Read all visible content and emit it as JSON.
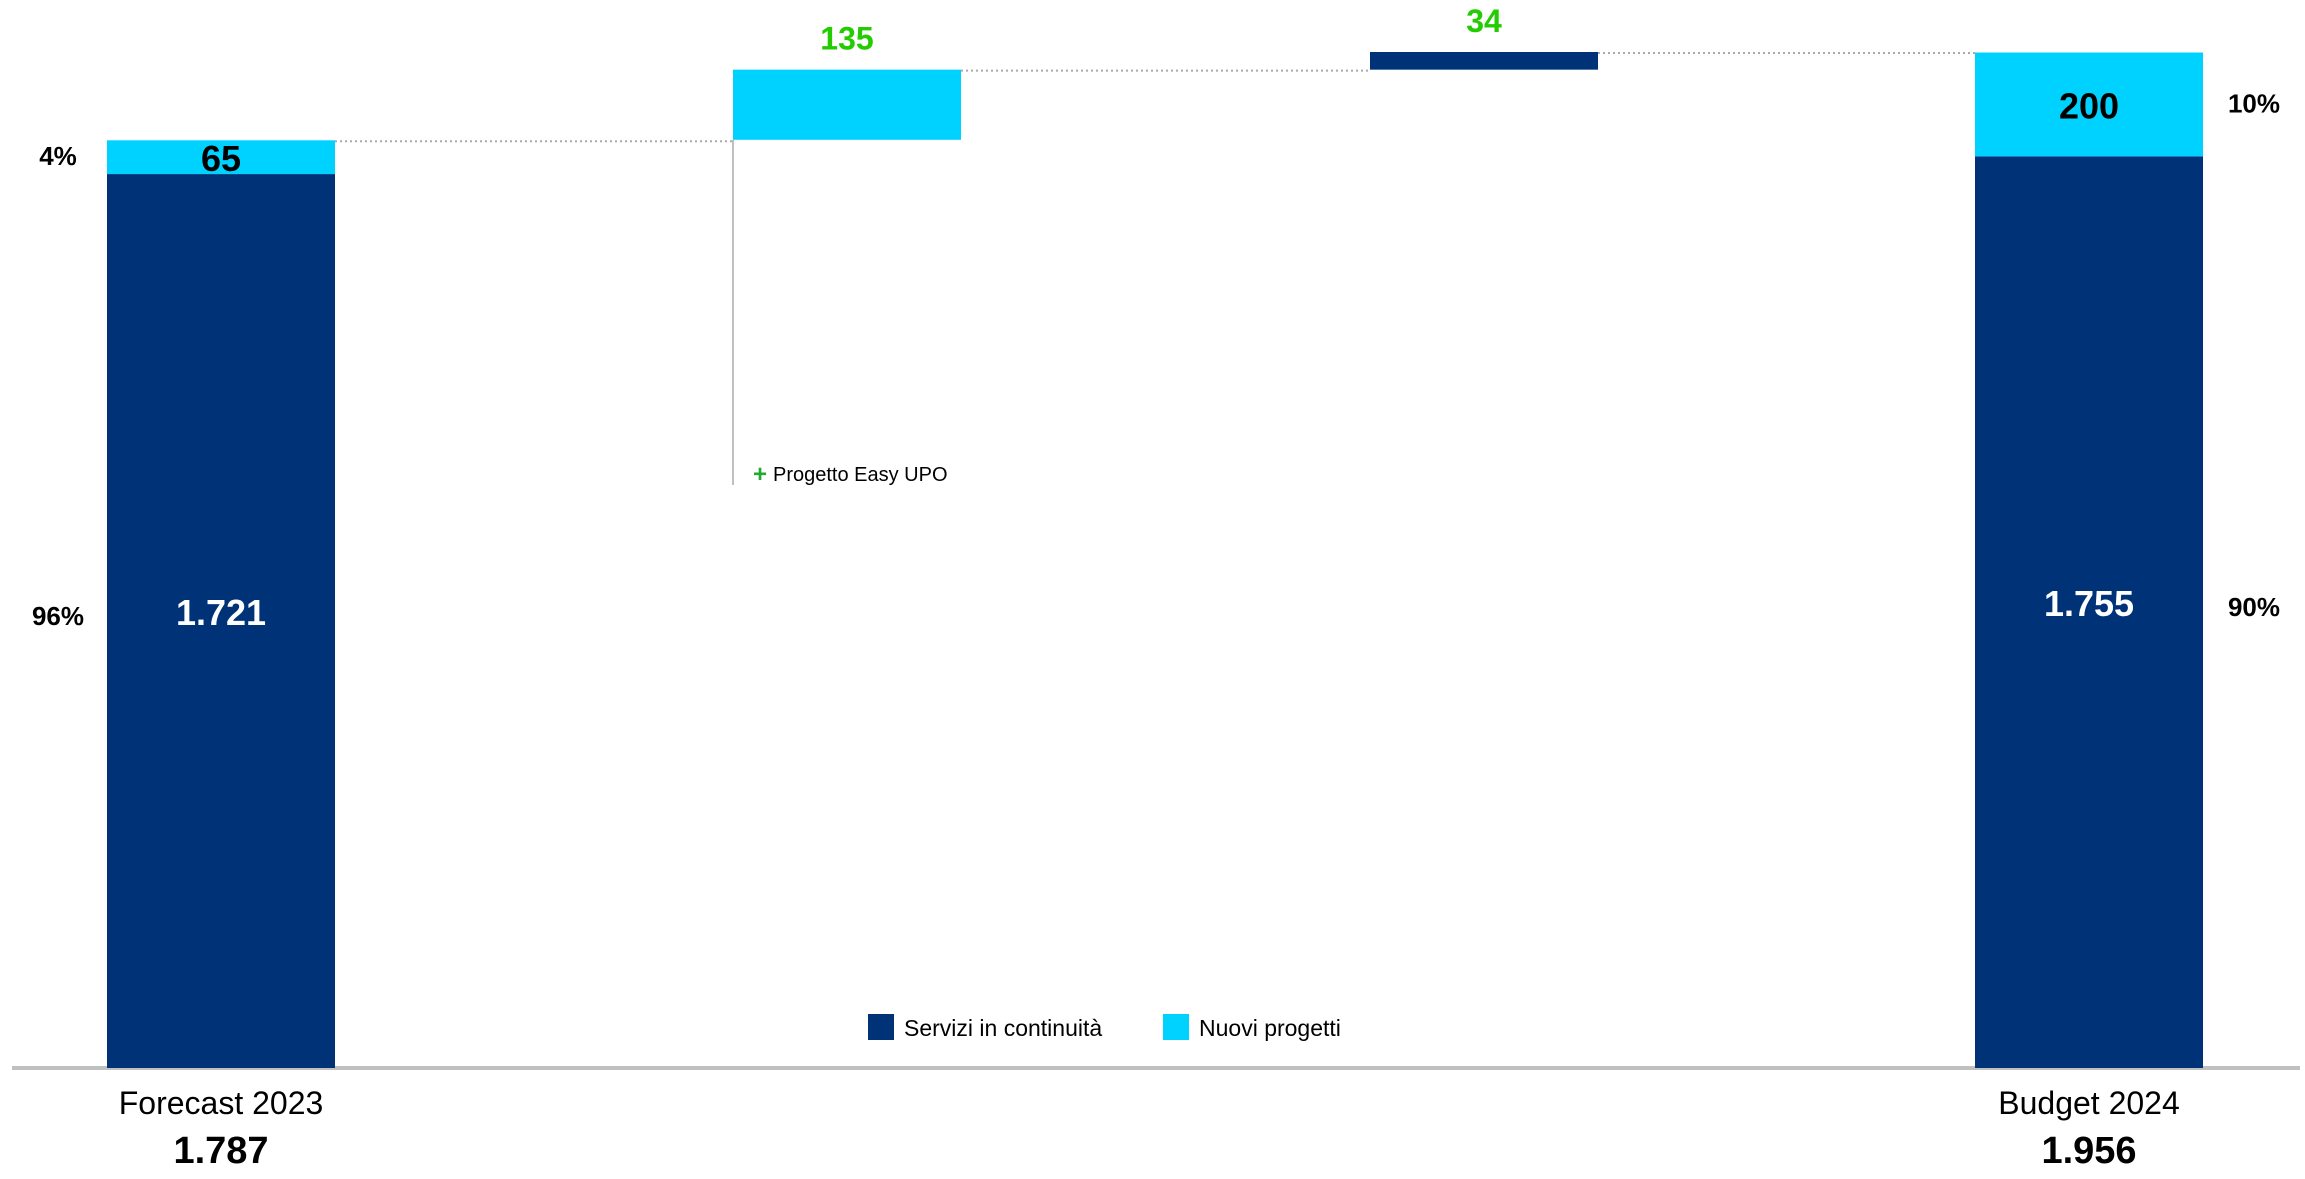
{
  "chart_data": {
    "type": "bar",
    "subtype": "stacked-waterfall",
    "ylim": [
      0,
      2000
    ],
    "series": [
      {
        "name": "Servizi in continuità",
        "color": "#003278"
      },
      {
        "name": "Nuovi progetti",
        "color": "#00D2FF"
      }
    ],
    "bars": [
      {
        "kind": "total",
        "category": "Forecast 2023",
        "total_label": "1.787",
        "segments": [
          {
            "series": "Servizi in continuità",
            "value": 1721,
            "label": "1.721"
          },
          {
            "series": "Nuovi progetti",
            "value": 65,
            "label": "65"
          }
        ],
        "left_percent_labels": [
          "96%",
          "4%"
        ]
      },
      {
        "kind": "delta",
        "category": "",
        "series": "Nuovi progetti",
        "from": 1787,
        "to": 1922,
        "label": "135",
        "annotation": {
          "sign": "+",
          "text": "Progetto Easy UPO"
        }
      },
      {
        "kind": "delta",
        "category": "",
        "series": "Servizi in continuità",
        "from": 1922,
        "to": 1956,
        "label": "34"
      },
      {
        "kind": "total",
        "category": "Budget 2024",
        "total_label": "1.956",
        "segments": [
          {
            "series": "Servizi in continuità",
            "value": 1755,
            "label": "1.755"
          },
          {
            "series": "Nuovi progetti",
            "value": 200,
            "label": "200"
          }
        ],
        "right_percent_labels": [
          "90%",
          "10%"
        ]
      }
    ],
    "legend": {
      "placement": "bottom-center",
      "items": [
        {
          "label": "Servizi in continuità",
          "color": "#003278"
        },
        {
          "label": "Nuovi progetti",
          "color": "#00D2FF"
        }
      ]
    },
    "colors": {
      "delta_label": "#22CC00",
      "annotation_plus": "#22AA33",
      "baseline": "#C0C0C0",
      "connector": "#AAAAAA",
      "inner_label_dark": "#FFFFFF",
      "inner_label_light": "#000000"
    },
    "grid": false
  }
}
